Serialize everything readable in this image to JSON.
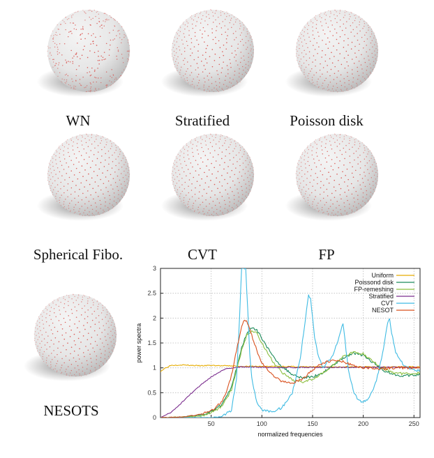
{
  "panels": [
    {
      "label": "WN",
      "count": 700,
      "method": "random"
    },
    {
      "label": "Stratified",
      "count": 700,
      "method": "jitter"
    },
    {
      "label": "Poisson disk",
      "count": 700,
      "method": "poisson"
    },
    {
      "label": "Spherical Fibo.",
      "count": 700,
      "method": "fibo"
    },
    {
      "label": "CVT",
      "count": 700,
      "method": "cvt"
    },
    {
      "label": "FP",
      "count": 700,
      "method": "fp"
    },
    {
      "label": "NESOTS",
      "count": 700,
      "method": "nesot"
    }
  ],
  "colors": {
    "dot": "#d9534f",
    "sphere_light": "#f4f4f4",
    "sphere_dark": "#b9b9b9"
  },
  "chart_data": {
    "type": "line",
    "xlabel": "normalized frequencies",
    "ylabel": "power spectra",
    "xlim": [
      0,
      256
    ],
    "ylim": [
      0,
      3
    ],
    "xticks": [
      50,
      100,
      150,
      200,
      250
    ],
    "yticks": [
      0,
      0.5,
      1,
      1.5,
      2,
      2.5,
      3
    ],
    "grid": true,
    "legend_position": "top-right",
    "series": [
      {
        "name": "Uniform",
        "color": "#e6ac00",
        "x": [
          0,
          5,
          10,
          20,
          30,
          40,
          50,
          60,
          70,
          80,
          90,
          100,
          120,
          140,
          160,
          180,
          200,
          220,
          240,
          256
        ],
        "y": [
          0.93,
          1.0,
          1.05,
          1.06,
          1.05,
          1.04,
          1.05,
          1.04,
          1.04,
          1.03,
          1.03,
          1.03,
          1.03,
          1.02,
          1.02,
          1.02,
          1.02,
          1.02,
          1.02,
          1.02
        ]
      },
      {
        "name": "Poissond disk",
        "color": "#1b8a5a",
        "x": [
          0,
          20,
          40,
          50,
          60,
          70,
          75,
          80,
          85,
          90,
          95,
          100,
          110,
          120,
          130,
          140,
          150,
          160,
          170,
          180,
          190,
          200,
          210,
          220,
          230,
          240,
          256
        ],
        "y": [
          0.0,
          0.01,
          0.05,
          0.12,
          0.25,
          0.6,
          1.0,
          1.4,
          1.7,
          1.8,
          1.75,
          1.6,
          1.25,
          1.02,
          0.87,
          0.8,
          0.82,
          0.9,
          1.05,
          1.2,
          1.3,
          1.25,
          1.1,
          0.95,
          0.87,
          0.84,
          0.86
        ]
      },
      {
        "name": "FP-remeshing",
        "color": "#8cbf3f",
        "x": [
          0,
          20,
          40,
          50,
          60,
          70,
          75,
          80,
          85,
          90,
          95,
          100,
          110,
          120,
          130,
          140,
          150,
          160,
          170,
          180,
          190,
          200,
          210,
          220,
          230,
          240,
          256
        ],
        "y": [
          0.0,
          0.01,
          0.03,
          0.1,
          0.22,
          0.55,
          0.95,
          1.35,
          1.65,
          1.75,
          1.7,
          1.5,
          1.15,
          0.9,
          0.75,
          0.72,
          0.78,
          0.9,
          1.05,
          1.22,
          1.32,
          1.28,
          1.12,
          0.98,
          0.9,
          0.88,
          0.9
        ]
      },
      {
        "name": "Stratified",
        "color": "#7b2d8e",
        "x": [
          0,
          10,
          20,
          30,
          40,
          50,
          60,
          65,
          70,
          80,
          90,
          100,
          120,
          140,
          160,
          180,
          200,
          220,
          240,
          256
        ],
        "y": [
          0.0,
          0.1,
          0.28,
          0.48,
          0.66,
          0.82,
          0.94,
          0.98,
          1.0,
          1.02,
          1.02,
          1.01,
          1.01,
          1.01,
          1.01,
          1.01,
          1.01,
          1.01,
          1.01,
          1.01
        ]
      },
      {
        "name": "CVT",
        "color": "#3fbbe3",
        "x": [
          0,
          30,
          50,
          60,
          70,
          75,
          78,
          80,
          82,
          84,
          86,
          88,
          90,
          95,
          100,
          110,
          120,
          130,
          138,
          143,
          146,
          148,
          150,
          152,
          155,
          160,
          170,
          175,
          180,
          185,
          190,
          195,
          200,
          205,
          210,
          215,
          220,
          224,
          226,
          228,
          232,
          240,
          250,
          256
        ],
        "y": [
          0.0,
          0.0,
          0.0,
          0.02,
          0.15,
          0.8,
          2.0,
          3.0,
          3.0,
          3.0,
          2.2,
          1.3,
          0.8,
          0.3,
          0.15,
          0.12,
          0.2,
          0.5,
          1.2,
          2.0,
          2.45,
          2.4,
          2.0,
          1.6,
          1.3,
          1.0,
          1.25,
          1.55,
          1.9,
          1.0,
          0.55,
          0.35,
          0.32,
          0.38,
          0.55,
          0.9,
          1.4,
          1.9,
          2.0,
          1.7,
          1.3,
          1.05,
          0.95,
          0.95
        ]
      },
      {
        "name": "NESOT",
        "color": "#d9501e",
        "x": [
          0,
          20,
          40,
          50,
          60,
          65,
          70,
          75,
          80,
          83,
          86,
          90,
          95,
          100,
          110,
          120,
          130,
          140,
          150,
          160,
          170,
          180,
          190,
          200,
          210,
          220,
          230,
          240,
          256
        ],
        "y": [
          0.0,
          0.01,
          0.06,
          0.14,
          0.3,
          0.5,
          0.85,
          1.35,
          1.85,
          1.97,
          1.9,
          1.65,
          1.35,
          1.1,
          0.85,
          0.72,
          0.7,
          0.78,
          0.95,
          1.1,
          1.15,
          1.12,
          1.05,
          1.0,
          0.98,
          0.98,
          1.0,
          1.0,
          1.0
        ]
      }
    ]
  }
}
